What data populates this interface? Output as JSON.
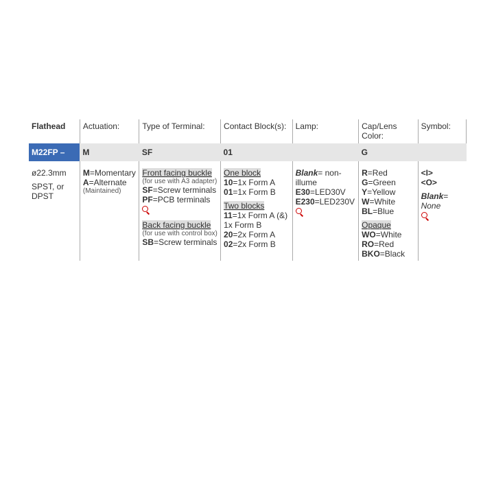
{
  "headers": {
    "type": "Flathead",
    "actuation": "Actuation:",
    "terminal": "Type of Terminal:",
    "contact": "Contact Block(s):",
    "lamp": "Lamp:",
    "cap": "Cap/Lens Color:",
    "symbol": "Symbol:"
  },
  "band": {
    "type": "M22FP –",
    "actuation": "M",
    "terminal": "SF",
    "contact": "01",
    "lamp": "",
    "cap": "G",
    "symbol": ""
  },
  "body": {
    "type_l1": "ø22.3mm",
    "type_l2": "SPST, or DPST",
    "act_m_code": "M",
    "act_m_val": "=Momentary",
    "act_a_code": "A",
    "act_a_val": "=Alternate",
    "act_a_sub": "(Maintained)",
    "term_front_title": "Front facing buckle",
    "term_front_sub": "(for use with A3 adapter)",
    "term_sf_code": "SF",
    "term_sf_val": "=Screw terminals",
    "term_pf_code": "PF",
    "term_pf_val": "=PCB terminals",
    "term_back_title": "Back facing buckle",
    "term_back_sub": "(for use with control box)",
    "term_sb_code": "SB",
    "term_sb_val": "=Screw terminals",
    "cont_one_title": "One block",
    "cont_10_code": "10",
    "cont_10_val": "=1x Form A",
    "cont_01_code": "01",
    "cont_01_val": "=1x Form B",
    "cont_two_title": "Two blocks",
    "cont_11_code": "11",
    "cont_11_val": "=1x Form A (&) 1x Form B",
    "cont_20_code": "20",
    "cont_20_val": "=2x Form A",
    "cont_02_code": "02",
    "cont_02_val": "=2x Form B",
    "lamp_blank_code": "Blank",
    "lamp_blank_val": "= non-illume",
    "lamp_e30_code": "E30",
    "lamp_e30_val": "=LED30V",
    "lamp_e230_code": "E230",
    "lamp_e230_val": "=LED230V",
    "cap_r_code": "R",
    "cap_r_val": "=Red",
    "cap_g_code": "G",
    "cap_g_val": "=Green",
    "cap_y_code": "Y",
    "cap_y_val": "=Yellow",
    "cap_w_code": "W",
    "cap_w_val": "=White",
    "cap_bl_code": "BL",
    "cap_bl_val": "=Blue",
    "cap_op_title": "Opaque",
    "cap_wo_code": "WO",
    "cap_wo_val": "=White",
    "cap_ro_code": "RO",
    "cap_ro_val": "=Red",
    "cap_bko_code": "BKO",
    "cap_bko_val": "=Black",
    "sym_i": "<I>",
    "sym_o": "<O>",
    "sym_blank_code": "Blank",
    "sym_blank_val": "=",
    "sym_none": "None"
  }
}
